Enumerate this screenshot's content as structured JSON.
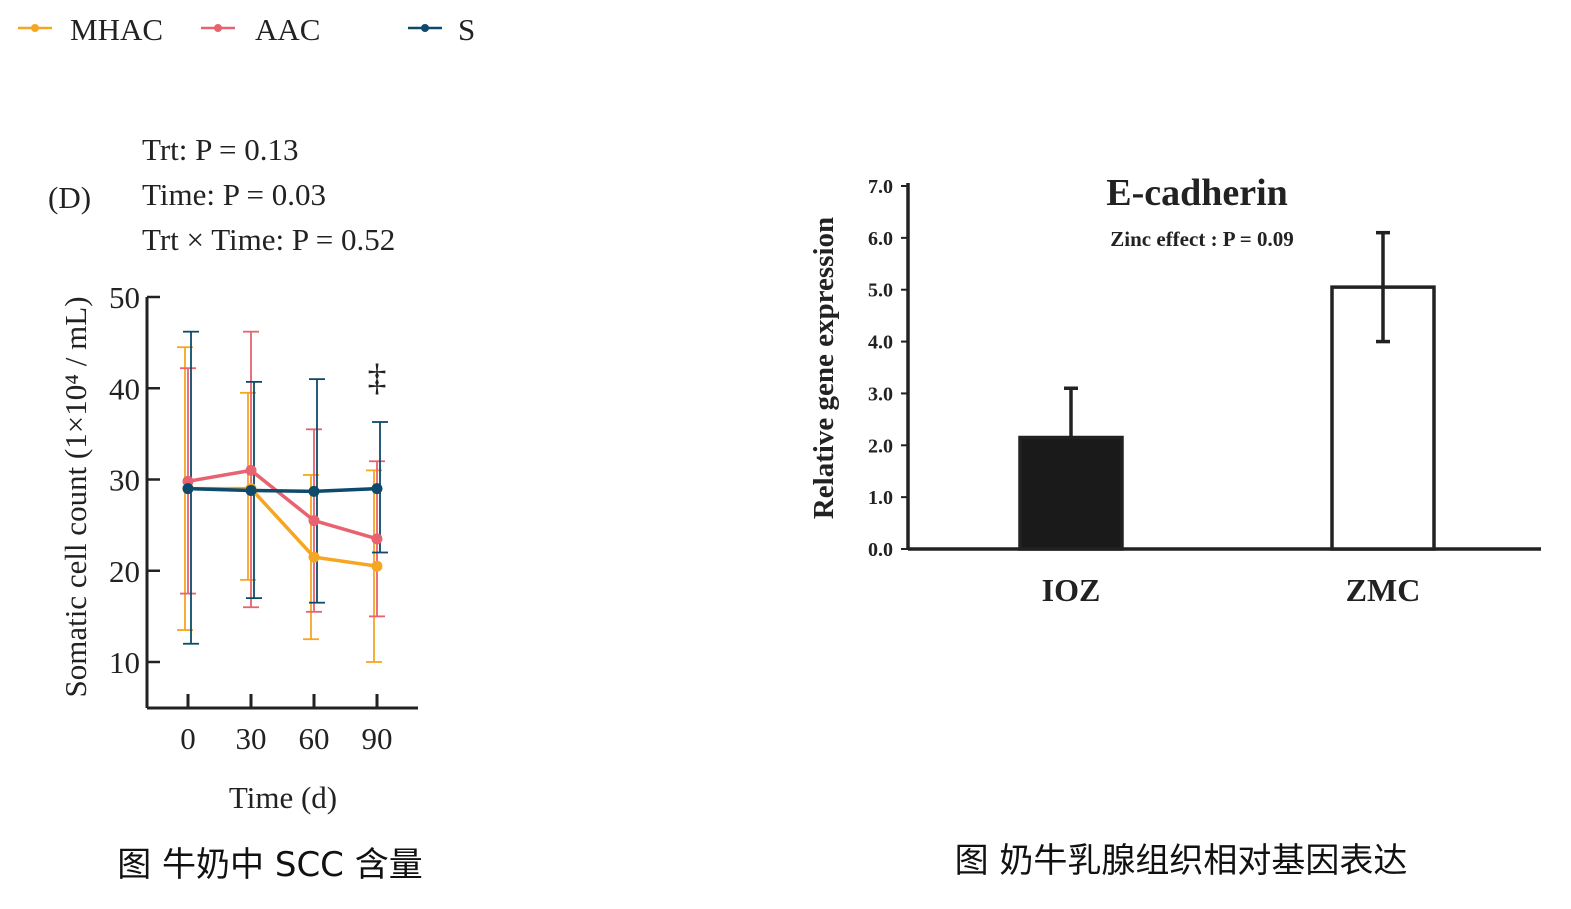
{
  "legend": [
    {
      "label": "MHAC",
      "color": "#f5a623"
    },
    {
      "label": "AAC",
      "color": "#e8626f"
    },
    {
      "label": "S",
      "color": "#0d4a6b"
    }
  ],
  "chart_data": [
    {
      "type": "line",
      "panel_label": "(D)",
      "stats": [
        "Trt: P = 0.13",
        "Time: P = 0.03",
        "Trt × Time: P = 0.52"
      ],
      "xlabel": "Time (d)",
      "ylabel": "Somatic cell count (1×10⁴ / mL)",
      "x": [
        0,
        30,
        60,
        90
      ],
      "x_tick_labels": [
        "0",
        "30",
        "60",
        "90"
      ],
      "ylim": [
        5,
        50
      ],
      "y_ticks": [
        10,
        20,
        30,
        40,
        50
      ],
      "annotation": {
        "text": "‡",
        "x": 90
      },
      "series": [
        {
          "name": "MHAC",
          "color": "#f5a623",
          "values": [
            29,
            29,
            21.5,
            20.5
          ],
          "err_low": [
            13.5,
            19,
            12.5,
            10
          ],
          "err_high": [
            44.5,
            39.5,
            30.5,
            31
          ]
        },
        {
          "name": "AAC",
          "color": "#e8626f",
          "values": [
            29.8,
            31,
            25.5,
            23.5
          ],
          "err_low": [
            17.5,
            16,
            15.5,
            15
          ],
          "err_high": [
            42.2,
            46.2,
            35.5,
            32
          ]
        },
        {
          "name": "S",
          "color": "#0d4a6b",
          "values": [
            29,
            28.8,
            28.7,
            29
          ],
          "err_low": [
            12,
            17,
            16.5,
            22
          ],
          "err_high": [
            46.2,
            40.7,
            41,
            36.3
          ]
        }
      ],
      "caption": "图  牛奶中 SCC 含量"
    },
    {
      "type": "bar",
      "title": "E-cadherin",
      "subtitle": "Zinc effect : P = 0.09",
      "ylabel": "Relative gene expression",
      "categories": [
        "IOZ",
        "ZMC"
      ],
      "values": [
        2.15,
        5.05
      ],
      "errors": [
        0.95,
        1.05
      ],
      "bar_fill": [
        "#1a1a1a",
        "#ffffff"
      ],
      "ylim": [
        0,
        7
      ],
      "y_tick_labels": [
        "0.0",
        "1.0",
        "2.0",
        "3.0",
        "4.0",
        "5.0",
        "6.0",
        "7.0"
      ],
      "caption": "图  奶牛乳腺组织相对基因表达"
    }
  ]
}
